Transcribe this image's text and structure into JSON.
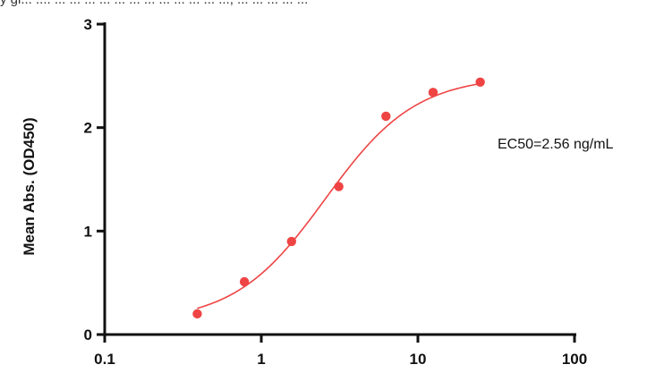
{
  "header_fragment": "y gl... .... ... ... ... ... ... ... ... ... ... ... ... ..., ... ... ... ... ...",
  "chart_data": {
    "type": "scatter",
    "title": "",
    "xlabel": "",
    "ylabel": "Mean Abs. (OD450)",
    "xscale": "log",
    "xlim": [
      0.1,
      100
    ],
    "ylim": [
      0,
      3
    ],
    "x_ticks": [
      "0.1",
      "1",
      "10",
      "100"
    ],
    "y_ticks": [
      "0",
      "1",
      "2",
      "3"
    ],
    "grid": false,
    "annotation": "EC50=2.56 ng/mL",
    "marker_color": "#ef4444",
    "curve_color": "#ef4444",
    "series": [
      {
        "x": [
          0.39,
          0.78,
          1.56,
          3.125,
          6.25,
          12.5,
          25
        ],
        "y": [
          0.2,
          0.51,
          0.9,
          1.43,
          2.11,
          2.34,
          2.44
        ]
      }
    ],
    "fit": {
      "model": "4PL",
      "bottom": 0.12,
      "top": 2.5,
      "ec50": 2.56,
      "hill": 1.5
    }
  }
}
